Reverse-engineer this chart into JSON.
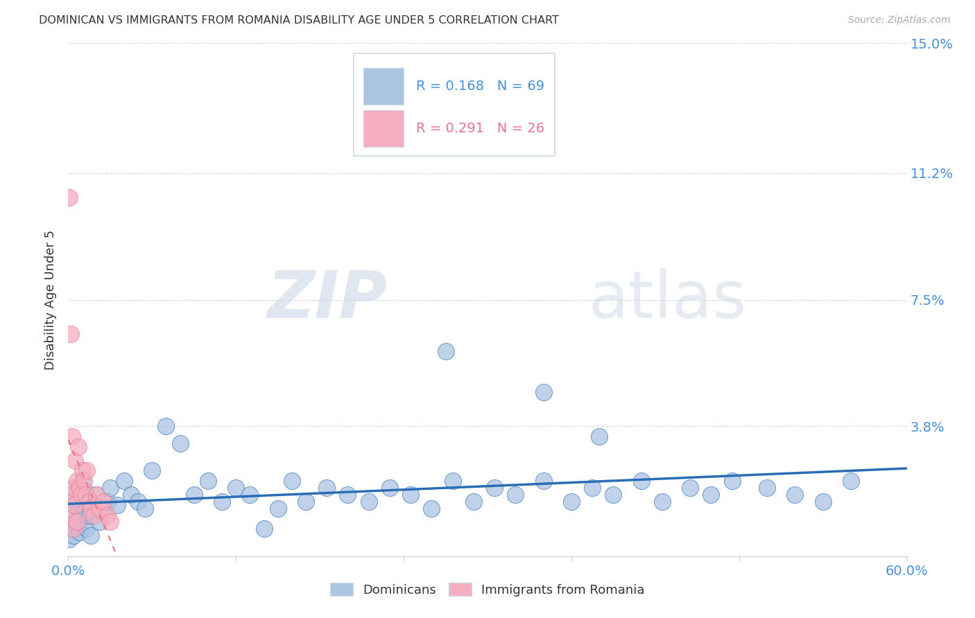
{
  "title": "DOMINICAN VS IMMIGRANTS FROM ROMANIA DISABILITY AGE UNDER 5 CORRELATION CHART",
  "source": "Source: ZipAtlas.com",
  "ylabel": "Disability Age Under 5",
  "xlim": [
    0.0,
    0.6
  ],
  "ylim": [
    -0.005,
    0.155
  ],
  "plot_ylim": [
    0.0,
    0.15
  ],
  "yticks": [
    0.038,
    0.075,
    0.112,
    0.15
  ],
  "ytick_labels": [
    "3.8%",
    "7.5%",
    "11.2%",
    "15.0%"
  ],
  "xticks": [
    0.0,
    0.12,
    0.24,
    0.36,
    0.48,
    0.6
  ],
  "xtick_labels": [
    "0.0%",
    "",
    "",
    "",
    "",
    "60.0%"
  ],
  "legend1_label": "Dominicans",
  "legend2_label": "Immigrants from Romania",
  "r1": 0.168,
  "n1": 69,
  "r2": 0.291,
  "n2": 26,
  "color_dominican": "#aac4e2",
  "color_romania": "#f5aec0",
  "color_trend_dominican": "#2a6db5",
  "color_trend_romania": "#e8748a",
  "watermark_zip": "ZIP",
  "watermark_atlas": "atlas",
  "title_color": "#333333",
  "tick_label_color": "#4a90d9",
  "source_color": "#aaaaaa",
  "grid_color": "#d8dde8",
  "legend_box_color": "#d0d8e8"
}
